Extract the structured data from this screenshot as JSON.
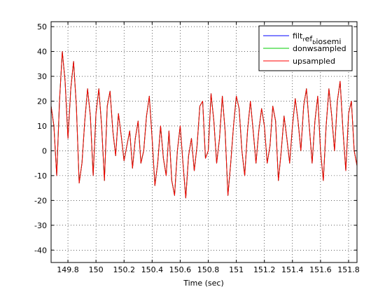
{
  "chart_data": {
    "type": "line",
    "title": "",
    "xlabel": "Time (sec)",
    "ylabel": "",
    "xlim": [
      149.68,
      151.86
    ],
    "ylim": [
      -45,
      52
    ],
    "xticks": [
      149.8,
      150,
      150.2,
      150.4,
      150.6,
      150.8,
      151,
      151.2,
      151.4,
      151.6,
      151.8
    ],
    "xtick_labels": [
      "149.8",
      "150",
      "150.2",
      "150.4",
      "150.6",
      "150.8",
      "151",
      "151.2",
      "151.4",
      "151.6",
      "151.8"
    ],
    "yticks": [
      -40,
      -30,
      -20,
      -10,
      0,
      10,
      20,
      30,
      40,
      50
    ],
    "ytick_labels": [
      "-40",
      "-30",
      "-20",
      "-10",
      "0",
      "10",
      "20",
      "30",
      "40",
      "50"
    ],
    "grid": true,
    "legend_position": "top-right",
    "legend": {
      "entries": [
        {
          "series_index": 0,
          "parts": [
            {
              "text": "filt"
            },
            {
              "text": "r",
              "sub": true
            },
            {
              "text": "ef"
            },
            {
              "text": "b",
              "sub": true
            },
            {
              "text": "iosemi"
            }
          ]
        },
        {
          "series_index": 1,
          "parts": [
            {
              "text": "donwsampled"
            }
          ]
        },
        {
          "series_index": 2,
          "parts": [
            {
              "text": "upsampled"
            }
          ]
        }
      ]
    },
    "x": [
      149.68,
      149.7,
      149.72,
      149.74,
      149.76,
      149.78,
      149.8,
      149.82,
      149.84,
      149.86,
      149.88,
      149.9,
      149.92,
      149.94,
      149.96,
      149.98,
      150.0,
      150.02,
      150.04,
      150.06,
      150.08,
      150.1,
      150.12,
      150.14,
      150.16,
      150.18,
      150.2,
      150.22,
      150.24,
      150.26,
      150.28,
      150.3,
      150.32,
      150.34,
      150.36,
      150.38,
      150.4,
      150.42,
      150.44,
      150.46,
      150.48,
      150.5,
      150.52,
      150.54,
      150.56,
      150.58,
      150.6,
      150.62,
      150.64,
      150.66,
      150.68,
      150.7,
      150.72,
      150.74,
      150.76,
      150.78,
      150.8,
      150.82,
      150.84,
      150.86,
      150.88,
      150.9,
      150.92,
      150.94,
      150.96,
      150.98,
      151.0,
      151.02,
      151.04,
      151.06,
      151.08,
      151.1,
      151.12,
      151.14,
      151.16,
      151.18,
      151.2,
      151.22,
      151.24,
      151.26,
      151.28,
      151.3,
      151.32,
      151.34,
      151.36,
      151.38,
      151.4,
      151.42,
      151.44,
      151.46,
      151.48,
      151.5,
      151.52,
      151.54,
      151.56,
      151.58,
      151.6,
      151.62,
      151.64,
      151.66,
      151.68,
      151.7,
      151.72,
      151.74,
      151.76,
      151.78,
      151.8,
      151.82,
      151.84,
      151.86
    ],
    "series": [
      {
        "name": "filt_ref_biosemi",
        "color": "#0000ff",
        "values": [
          18,
          10,
          -10,
          20,
          40,
          28,
          5,
          25,
          36,
          18,
          -13,
          -5,
          12,
          25,
          14,
          -10,
          15,
          25,
          10,
          -12,
          18,
          24,
          8,
          -2,
          15,
          6,
          -4,
          2,
          8,
          -7,
          5,
          12,
          -5,
          0,
          14,
          22,
          5,
          -14,
          -5,
          10,
          -3,
          -10,
          8,
          -12,
          -18,
          0,
          10,
          -5,
          -19,
          -2,
          5,
          -8,
          2,
          18,
          20,
          -3,
          0,
          23,
          12,
          -5,
          5,
          22,
          8,
          -18,
          -5,
          10,
          22,
          17,
          0,
          -10,
          8,
          20,
          8,
          -5,
          8,
          17,
          10,
          -5,
          2,
          18,
          12,
          -12,
          0,
          14,
          5,
          -5,
          10,
          21,
          12,
          0,
          18,
          25,
          10,
          -5,
          12,
          22,
          0,
          -12,
          10,
          25,
          14,
          0,
          20,
          28,
          8,
          -8,
          15,
          20,
          0,
          -6
        ]
      },
      {
        "name": "donwsampled",
        "color": "#00cc00",
        "values": [
          18,
          10,
          -10,
          20,
          40,
          28,
          5,
          25,
          36,
          18,
          -13,
          -5,
          12,
          25,
          14,
          -10,
          15,
          25,
          10,
          -12,
          18,
          24,
          8,
          -2,
          15,
          6,
          -4,
          2,
          8,
          -7,
          5,
          12,
          -5,
          0,
          14,
          22,
          5,
          -14,
          -5,
          10,
          -3,
          -10,
          8,
          -12,
          -18,
          0,
          10,
          -5,
          -19,
          -2,
          5,
          -8,
          2,
          18,
          20,
          -3,
          0,
          23,
          12,
          -5,
          5,
          22,
          8,
          -18,
          -5,
          10,
          22,
          17,
          0,
          -10,
          8,
          20,
          8,
          -5,
          8,
          17,
          10,
          -5,
          2,
          18,
          12,
          -12,
          0,
          14,
          5,
          -5,
          10,
          21,
          12,
          0,
          18,
          25,
          10,
          -5,
          12,
          22,
          0,
          -12,
          10,
          25,
          14,
          0,
          20,
          28,
          8,
          -8,
          15,
          20,
          0,
          -6
        ]
      },
      {
        "name": "upsampled",
        "color": "#ff0000",
        "values": [
          18,
          10,
          -10,
          20,
          40,
          28,
          5,
          25,
          36,
          18,
          -13,
          -5,
          12,
          25,
          14,
          -10,
          15,
          25,
          10,
          -12,
          18,
          24,
          8,
          -2,
          15,
          6,
          -4,
          2,
          8,
          -7,
          5,
          12,
          -5,
          0,
          14,
          22,
          5,
          -14,
          -5,
          10,
          -3,
          -10,
          8,
          -12,
          -18,
          0,
          10,
          -5,
          -19,
          -2,
          5,
          -8,
          2,
          18,
          20,
          -3,
          0,
          23,
          12,
          -5,
          5,
          22,
          8,
          -18,
          -5,
          10,
          22,
          17,
          0,
          -10,
          8,
          20,
          8,
          -5,
          8,
          17,
          10,
          -5,
          2,
          18,
          12,
          -12,
          0,
          14,
          5,
          -5,
          10,
          21,
          12,
          0,
          18,
          25,
          10,
          -5,
          12,
          22,
          0,
          -12,
          10,
          25,
          14,
          0,
          20,
          28,
          8,
          -8,
          15,
          20,
          0,
          -6
        ]
      }
    ]
  }
}
